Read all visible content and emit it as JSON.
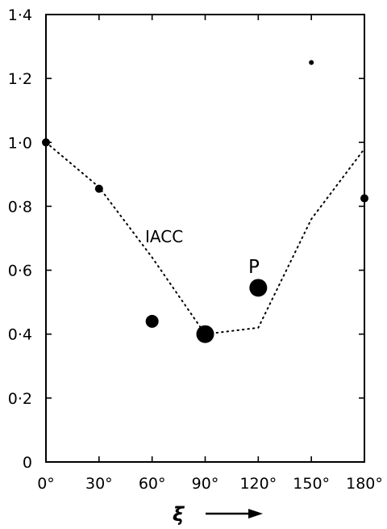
{
  "chart_data": {
    "type": "scatter",
    "xlabel": "ξ",
    "ylabel": "",
    "xlim": [
      0,
      180
    ],
    "ylim": [
      0,
      1.4
    ],
    "x_ticks": [
      0,
      30,
      60,
      90,
      120,
      150,
      180
    ],
    "x_tick_labels": [
      "0°",
      "30°",
      "60°",
      "90°",
      "120°",
      "150°",
      "180°"
    ],
    "y_ticks": [
      0,
      0.2,
      0.4,
      0.6,
      0.8,
      1.0,
      1.2,
      1.4
    ],
    "y_tick_labels": [
      "0",
      "0·2",
      "0·4",
      "0·6",
      "0·8",
      "1·0",
      "1·2",
      "1·4"
    ],
    "grid": false,
    "series": [
      {
        "name": "P",
        "style": "filled-circles-varying-size",
        "points": [
          {
            "x": 0,
            "y": 1.0,
            "size": "small"
          },
          {
            "x": 30,
            "y": 0.855,
            "size": "small"
          },
          {
            "x": 60,
            "y": 0.44,
            "size": "medium"
          },
          {
            "x": 90,
            "y": 0.4,
            "size": "large"
          },
          {
            "x": 120,
            "y": 0.545,
            "size": "large"
          },
          {
            "x": 150,
            "y": 1.25,
            "size": "tiny"
          },
          {
            "x": 180,
            "y": 0.825,
            "size": "small"
          }
        ]
      },
      {
        "name": "IACC",
        "style": "dotted-line",
        "x": [
          0,
          30,
          60,
          90,
          120,
          150,
          180
        ],
        "y": [
          1.0,
          0.86,
          0.64,
          0.4,
          0.42,
          0.76,
          0.98
        ]
      }
    ],
    "annotations": {
      "iacc_label": "IACC",
      "p_label": "P"
    },
    "colors": {
      "ink": "#000000",
      "background": "#ffffff"
    }
  }
}
